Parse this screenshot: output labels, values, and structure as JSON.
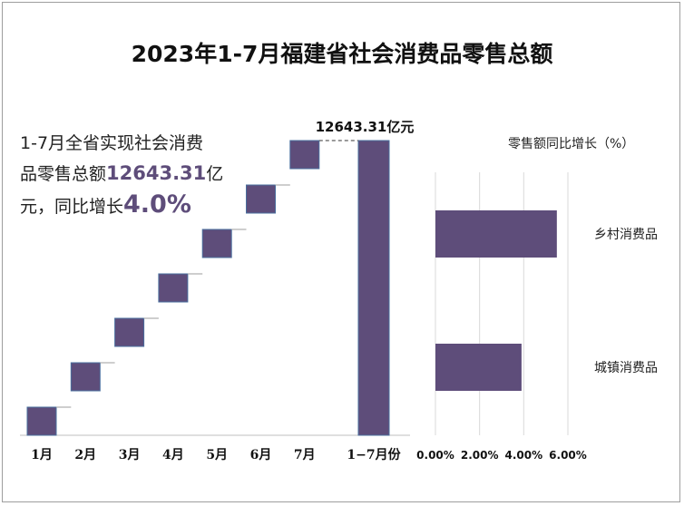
{
  "title": "2023年1-7月福建省社会消费品零售总额",
  "summary": {
    "line1": "1-7月全省实现社会消费",
    "line2_prefix": "品零售总额",
    "line2_value": "12643.31",
    "line2_suffix": "亿",
    "line3_prefix": "元，同比增长",
    "line3_value": "4.0%"
  },
  "chart_data": [
    {
      "type": "bar",
      "subtype": "waterfall",
      "categories": [
        "1月",
        "2月",
        "3月",
        "4月",
        "5月",
        "6月",
        "7月",
        "1−7月份"
      ],
      "total_label": "12643.31亿元",
      "colors": {
        "bar": "#5e4d7a",
        "edge": "#4a6f9e"
      }
    },
    {
      "type": "bar",
      "orientation": "horizontal",
      "title": "零售额同比增长（%）",
      "categories": [
        "乡村消费品",
        "城镇消费品"
      ],
      "values": [
        5.5,
        3.9
      ],
      "xlim": [
        0,
        6
      ],
      "xticks": [
        "0.00%",
        "2.00%",
        "4.00%",
        "6.00%"
      ],
      "colors": {
        "bar": "#5e4d7a",
        "grid": "#d9d9d9"
      }
    }
  ]
}
